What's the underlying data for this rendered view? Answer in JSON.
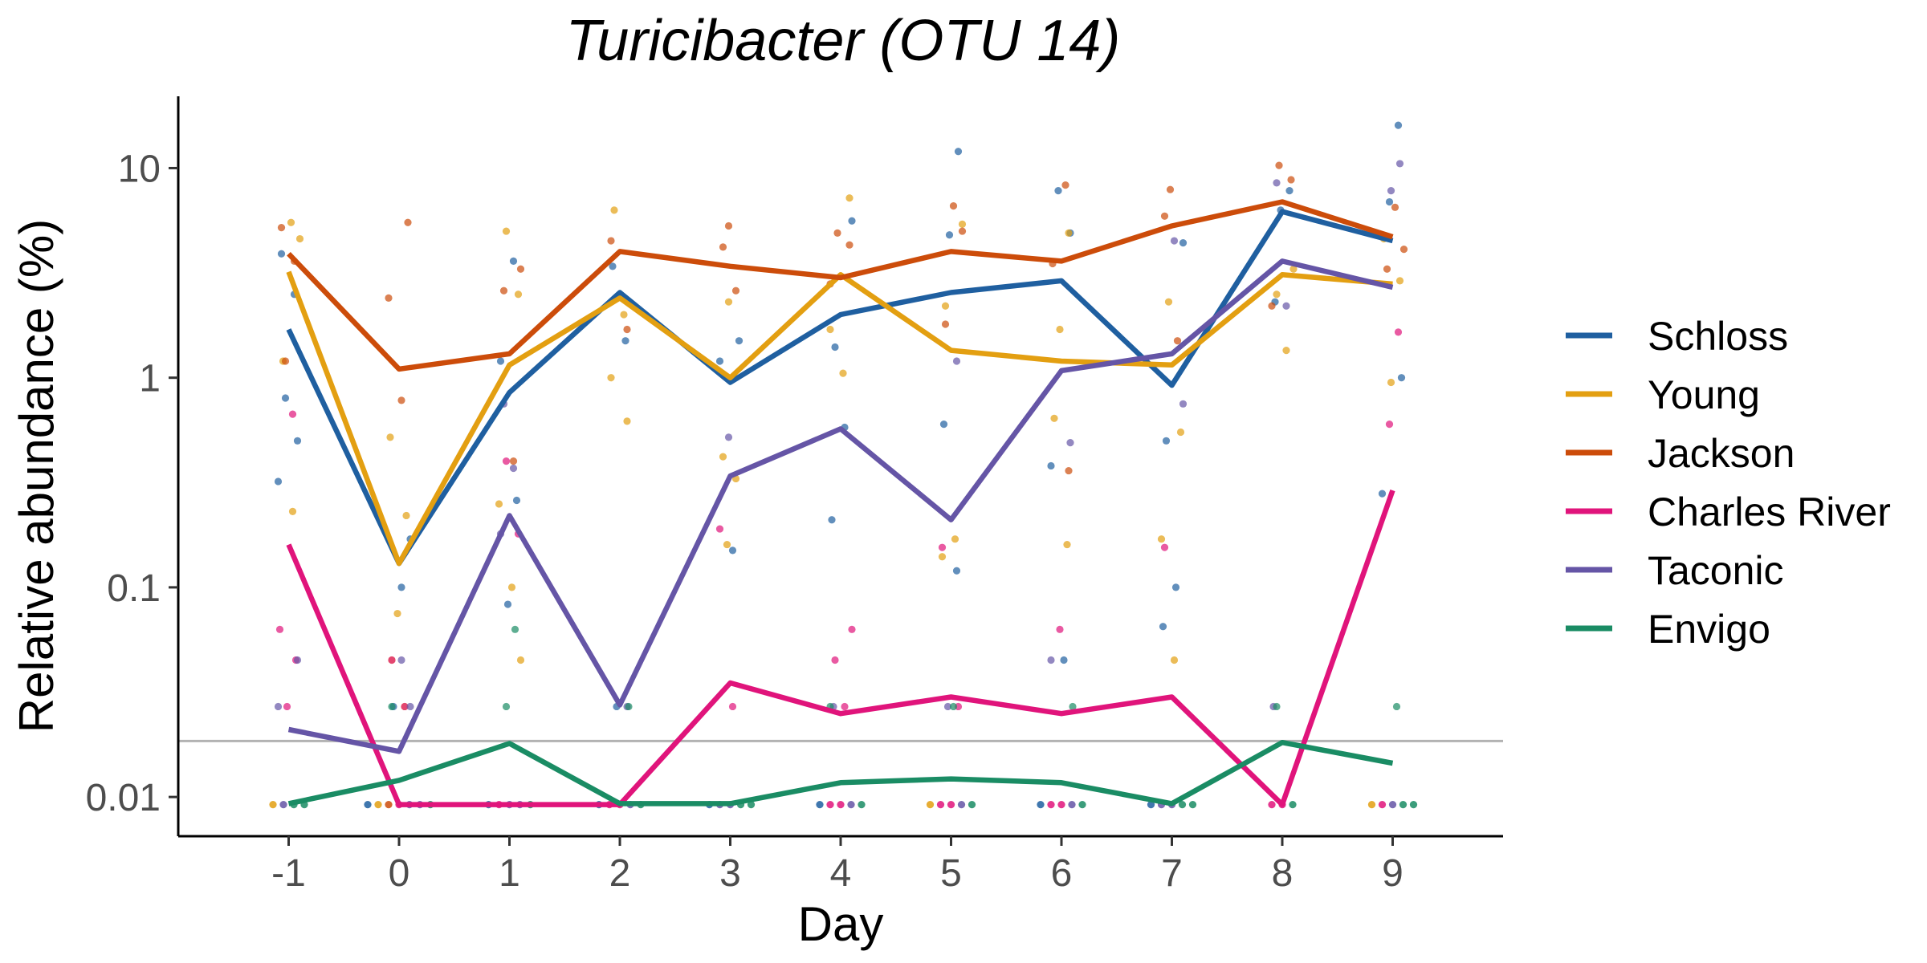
{
  "chart_data": {
    "type": "line",
    "title": "Turicibacter (OTU 14)",
    "xlabel": "Day",
    "ylabel": "Relative abundance (%)",
    "x": [
      -1,
      0,
      1,
      2,
      3,
      4,
      5,
      6,
      7,
      8,
      9
    ],
    "xlim": [
      -2,
      10
    ],
    "y_scale": "log10",
    "ylim": [
      0.0065,
      22
    ],
    "y_ticks": [
      0.01,
      0.1,
      1,
      10
    ],
    "y_tick_labels": [
      "0.01",
      "0.1",
      "1",
      "10"
    ],
    "x_tick_labels": [
      "-1",
      "0",
      "1",
      "2",
      "3",
      "4",
      "5",
      "6",
      "7",
      "8",
      "9"
    ],
    "reference_line": {
      "y": 0.0185,
      "color": "#b3b3b3"
    },
    "grid": false,
    "legend_position": "right",
    "series": [
      {
        "name": "Schloss",
        "color": "#1f5fa0",
        "values": [
          1.7,
          0.13,
          0.85,
          2.55,
          0.95,
          2.0,
          2.55,
          2.9,
          0.92,
          6.2,
          4.5
        ]
      },
      {
        "name": "Young",
        "color": "#e39f11",
        "values": [
          3.2,
          0.13,
          1.15,
          2.4,
          1.0,
          3.1,
          1.35,
          1.2,
          1.15,
          3.1,
          2.8
        ]
      },
      {
        "name": "Jackson",
        "color": "#cc4c0a",
        "values": [
          3.9,
          1.1,
          1.3,
          4.0,
          3.4,
          3.0,
          4.0,
          3.6,
          5.3,
          6.9,
          4.7
        ]
      },
      {
        "name": "Charles River",
        "color": "#e0147b",
        "values": [
          0.16,
          0.0092,
          0.0092,
          0.0092,
          0.035,
          0.025,
          0.03,
          0.025,
          0.03,
          0.0092,
          0.29
        ]
      },
      {
        "name": "Taconic",
        "color": "#6555a6",
        "values": [
          0.021,
          0.0165,
          0.22,
          0.0275,
          0.34,
          0.57,
          0.21,
          1.08,
          1.3,
          3.6,
          2.7
        ]
      },
      {
        "name": "Envigo",
        "color": "#1a8c64",
        "values": [
          0.0093,
          0.012,
          0.018,
          0.0093,
          0.0093,
          0.0117,
          0.0122,
          0.0117,
          0.0093,
          0.0182,
          0.0145
        ]
      }
    ],
    "points": [
      {
        "series": "Schloss",
        "values": [
          [
            -1,
            3.9
          ],
          [
            -1,
            2.5
          ],
          [
            -1,
            0.8
          ],
          [
            -1,
            0.5
          ],
          [
            -1,
            0.32
          ],
          [
            0,
            0.1
          ],
          [
            0,
            0.17
          ],
          [
            0,
            0.027
          ],
          [
            1,
            3.6
          ],
          [
            1,
            1.2
          ],
          [
            1,
            0.26
          ],
          [
            1,
            0.083
          ],
          [
            2,
            3.4
          ],
          [
            2,
            1.5
          ],
          [
            2,
            0.027
          ],
          [
            3,
            1.5
          ],
          [
            3,
            1.2
          ],
          [
            3,
            0.15
          ],
          [
            4,
            5.6
          ],
          [
            4,
            1.4
          ],
          [
            4,
            0.58
          ],
          [
            4,
            0.21
          ],
          [
            5,
            12
          ],
          [
            5,
            4.8
          ],
          [
            5,
            0.6
          ],
          [
            5,
            0.12
          ],
          [
            6,
            7.8
          ],
          [
            6,
            4.9
          ],
          [
            6,
            0.38
          ],
          [
            6,
            0.045
          ],
          [
            7,
            4.4
          ],
          [
            7,
            0.5
          ],
          [
            7,
            0.1
          ],
          [
            7,
            0.065
          ],
          [
            8,
            7.8
          ],
          [
            8,
            6.3
          ],
          [
            8,
            2.3
          ],
          [
            9,
            16
          ],
          [
            9,
            6.9
          ],
          [
            9,
            1.0
          ],
          [
            9,
            0.28
          ]
        ]
      },
      {
        "series": "Young",
        "values": [
          [
            -1,
            5.5
          ],
          [
            -1,
            4.6
          ],
          [
            -1,
            1.2
          ],
          [
            -1,
            0.23
          ],
          [
            0,
            0.52
          ],
          [
            0,
            0.22
          ],
          [
            0,
            0.075
          ],
          [
            0,
            0.045
          ],
          [
            0,
            0.027
          ],
          [
            1,
            5.0
          ],
          [
            1,
            2.5
          ],
          [
            1,
            0.25
          ],
          [
            1,
            0.1
          ],
          [
            1,
            0.045
          ],
          [
            2,
            6.3
          ],
          [
            2,
            2.0
          ],
          [
            2,
            1.0
          ],
          [
            2,
            0.62
          ],
          [
            3,
            2.3
          ],
          [
            3,
            0.42
          ],
          [
            3,
            0.33
          ],
          [
            3,
            0.16
          ],
          [
            4,
            7.2
          ],
          [
            4,
            1.7
          ],
          [
            4,
            1.05
          ],
          [
            5,
            5.4
          ],
          [
            5,
            2.2
          ],
          [
            5,
            0.17
          ],
          [
            5,
            0.14
          ],
          [
            6,
            4.9
          ],
          [
            6,
            1.7
          ],
          [
            6,
            0.64
          ],
          [
            6,
            0.16
          ],
          [
            7,
            2.3
          ],
          [
            7,
            0.55
          ],
          [
            7,
            0.17
          ],
          [
            7,
            0.045
          ],
          [
            8,
            3.3
          ],
          [
            8,
            2.5
          ],
          [
            8,
            1.35
          ],
          [
            9,
            4.6
          ],
          [
            9,
            2.9
          ],
          [
            9,
            0.95
          ]
        ]
      },
      {
        "series": "Jackson",
        "values": [
          [
            -1,
            5.2
          ],
          [
            -1,
            3.6
          ],
          [
            -1,
            1.2
          ],
          [
            0,
            5.5
          ],
          [
            0,
            2.4
          ],
          [
            0,
            0.78
          ],
          [
            1,
            3.3
          ],
          [
            1,
            2.6
          ],
          [
            1,
            0.4
          ],
          [
            2,
            4.5
          ],
          [
            2,
            1.7
          ],
          [
            3,
            5.3
          ],
          [
            3,
            4.2
          ],
          [
            3,
            2.6
          ],
          [
            4,
            4.9
          ],
          [
            4,
            4.3
          ],
          [
            4,
            2.8
          ],
          [
            5,
            6.6
          ],
          [
            5,
            5.0
          ],
          [
            5,
            1.8
          ],
          [
            6,
            8.3
          ],
          [
            6,
            3.5
          ],
          [
            6,
            0.36
          ],
          [
            7,
            7.9
          ],
          [
            7,
            5.9
          ],
          [
            7,
            1.5
          ],
          [
            8,
            10.3
          ],
          [
            8,
            8.8
          ],
          [
            8,
            2.2
          ],
          [
            9,
            6.5
          ],
          [
            9,
            4.1
          ],
          [
            9,
            3.3
          ]
        ]
      },
      {
        "series": "Charles River",
        "values": [
          [
            -1,
            0.67
          ],
          [
            -1,
            0.063
          ],
          [
            -1,
            0.045
          ],
          [
            -1,
            0.027
          ],
          [
            0,
            0.045
          ],
          [
            0,
            0.027
          ],
          [
            1,
            0.4
          ],
          [
            1,
            0.18
          ],
          [
            3,
            0.19
          ],
          [
            3,
            0.027
          ],
          [
            4,
            0.063
          ],
          [
            4,
            0.045
          ],
          [
            4,
            0.027
          ],
          [
            5,
            0.155
          ],
          [
            5,
            0.027
          ],
          [
            6,
            0.063
          ],
          [
            7,
            0.155
          ],
          [
            9,
            1.65
          ],
          [
            9,
            0.6
          ]
        ]
      },
      {
        "series": "Taconic",
        "values": [
          [
            -1,
            0.045
          ],
          [
            -1,
            0.027
          ],
          [
            0,
            0.045
          ],
          [
            0,
            0.027
          ],
          [
            1,
            0.75
          ],
          [
            1,
            0.37
          ],
          [
            1,
            0.18
          ],
          [
            2,
            0.027
          ],
          [
            3,
            0.52
          ],
          [
            4,
            0.027
          ],
          [
            5,
            1.2
          ],
          [
            5,
            0.027
          ],
          [
            6,
            0.49
          ],
          [
            6,
            0.045
          ],
          [
            7,
            4.5
          ],
          [
            7,
            0.75
          ],
          [
            8,
            8.5
          ],
          [
            8,
            2.2
          ],
          [
            8,
            0.027
          ],
          [
            9,
            10.5
          ],
          [
            9,
            7.8
          ]
        ]
      },
      {
        "series": "Envigo",
        "values": [
          [
            0,
            0.027
          ],
          [
            1,
            0.063
          ],
          [
            1,
            0.027
          ],
          [
            2,
            0.027
          ],
          [
            4,
            0.027
          ],
          [
            5,
            0.027
          ],
          [
            6,
            0.027
          ],
          [
            8,
            0.027
          ],
          [
            9,
            0.027
          ]
        ]
      }
    ],
    "floor_points": {
      "y": 0.0092,
      "by_day": [
        {
          "x": -1,
          "series": [
            "Young",
            "Taconic",
            "Envigo",
            "Envigo"
          ]
        },
        {
          "x": 0,
          "series": [
            "Schloss",
            "Young",
            "Jackson",
            "Charles River",
            "Taconic",
            "Taconic",
            "Envigo"
          ]
        },
        {
          "x": 1,
          "series": [
            "Schloss",
            "Charles River",
            "Taconic",
            "Taconic",
            "Envigo"
          ]
        },
        {
          "x": 2,
          "series": [
            "Schloss",
            "Charles River",
            "Charles River",
            "Taconic",
            "Envigo"
          ]
        },
        {
          "x": 3,
          "series": [
            "Schloss",
            "Taconic",
            "Taconic",
            "Envigo",
            "Envigo"
          ]
        },
        {
          "x": 4,
          "series": [
            "Schloss",
            "Charles River",
            "Charles River",
            "Taconic",
            "Envigo"
          ]
        },
        {
          "x": 5,
          "series": [
            "Young",
            "Charles River",
            "Charles River",
            "Taconic",
            "Envigo"
          ]
        },
        {
          "x": 6,
          "series": [
            "Schloss",
            "Charles River",
            "Charles River",
            "Taconic",
            "Envigo"
          ]
        },
        {
          "x": 7,
          "series": [
            "Schloss",
            "Taconic",
            "Taconic",
            "Envigo",
            "Envigo"
          ]
        },
        {
          "x": 8,
          "series": [
            "Charles River",
            "Charles River",
            "Envigo"
          ]
        },
        {
          "x": 9,
          "series": [
            "Young",
            "Charles River",
            "Taconic",
            "Envigo",
            "Envigo"
          ]
        }
      ]
    }
  }
}
